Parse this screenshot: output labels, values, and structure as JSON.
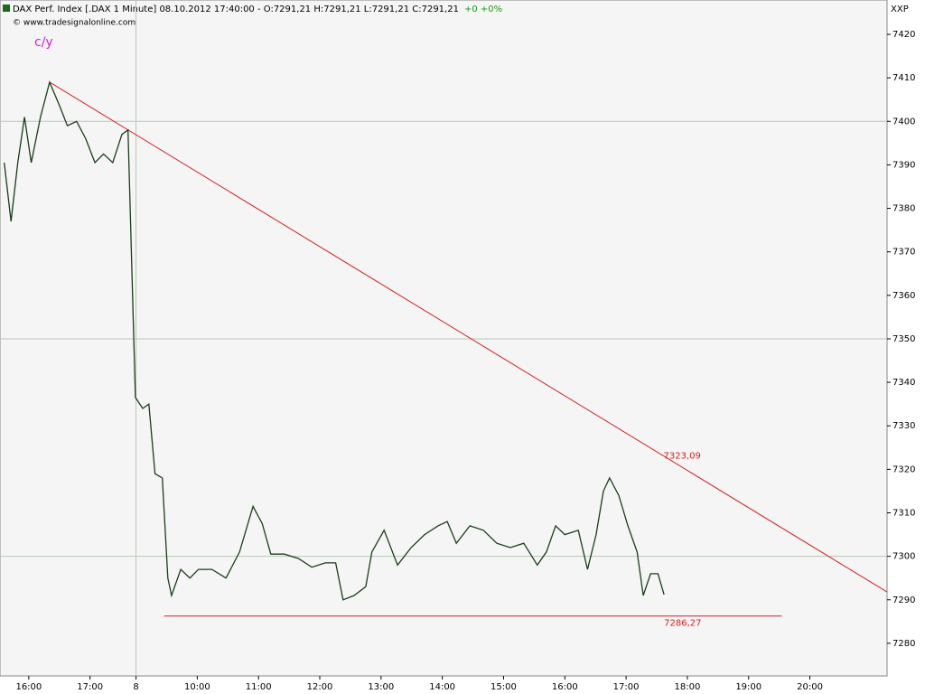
{
  "chart_data": {
    "type": "line",
    "title": "DAX Perf. Index [.DAX  1 Minute] 08.10.2012 17:40:00 - O:7291,21 H:7291,21 L:7291,21 C:7291,21",
    "change": "+0 +0%",
    "copyright": "© www.tradesignalonline.com",
    "tag": "c/y",
    "axis_label": "XXP",
    "x": [
      15.6,
      15.71,
      15.82,
      15.93,
      16.04,
      16.19,
      16.34,
      16.49,
      16.63,
      16.78,
      16.93,
      17.08,
      17.22,
      17.37,
      17.52,
      17.62,
      17.74,
      17.86,
      17.96,
      18.06,
      18.18,
      18.27,
      18.33,
      18.48,
      18.63,
      18.77,
      18.99,
      19.22,
      19.44,
      19.66,
      19.81,
      19.95,
      20.17,
      20.4,
      20.62,
      20.84,
      21.01,
      21.13,
      21.31,
      21.5,
      21.6,
      21.8,
      22.02,
      22.24,
      22.46,
      22.68,
      22.83,
      22.98,
      23.2,
      23.42,
      23.64,
      23.86,
      24.08,
      24.3,
      24.45,
      24.6,
      24.75,
      24.97,
      25.12,
      25.26,
      25.38,
      25.48,
      25.63,
      25.78,
      25.93,
      26.03,
      26.15,
      26.27,
      26.37
    ],
    "series": [
      {
        "name": "DAX",
        "color": "#1a3d1a",
        "values": [
          7390.5,
          7377,
          7390.5,
          7401,
          7390.5,
          7401,
          7409,
          7404,
          7399,
          7400,
          7396,
          7390.5,
          7392.5,
          7390.5,
          7397,
          7398,
          7336.5,
          7334,
          7335,
          7319,
          7318,
          7295,
          7291,
          7297,
          7295,
          7297,
          7297,
          7295,
          7301,
          7311.5,
          7307.5,
          7300.5,
          7300.5,
          7299.5,
          7297.5,
          7298.5,
          7298.5,
          7290,
          7291,
          7293,
          7301,
          7306,
          7298,
          7302,
          7305,
          7307,
          7308,
          7303,
          7307,
          7306,
          7303,
          7302,
          7303,
          7298,
          7301,
          7307,
          7305,
          7306,
          7297,
          7305,
          7315,
          7318,
          7314,
          7307,
          7301,
          7291,
          7296,
          7296,
          7291.21
        ]
      }
    ],
    "xlim": [
      15.53,
      30.01
    ],
    "ylim": [
      7272.5,
      7427.9
    ],
    "yticks": [
      7280,
      7290,
      7300,
      7310,
      7320,
      7330,
      7340,
      7350,
      7360,
      7370,
      7380,
      7390,
      7400,
      7410,
      7420
    ],
    "ygrid": [
      7300,
      7350,
      7400
    ],
    "xgrid": [
      17.75
    ],
    "xticks": [
      {
        "value": 16,
        "label": "16:00"
      },
      {
        "value": 17,
        "label": "17:00"
      },
      {
        "value": 17.75,
        "label": "8"
      },
      {
        "value": 18.75,
        "label": "10:00"
      },
      {
        "value": 19.75,
        "label": "11:00"
      },
      {
        "value": 20.75,
        "label": "12:00"
      },
      {
        "value": 21.75,
        "label": "13:00"
      },
      {
        "value": 22.75,
        "label": "14:00"
      },
      {
        "value": 23.75,
        "label": "15:00"
      },
      {
        "value": 24.75,
        "label": "16:00"
      },
      {
        "value": 25.75,
        "label": "17:00"
      },
      {
        "value": 26.75,
        "label": "18:00"
      },
      {
        "value": 27.75,
        "label": "19:00"
      },
      {
        "value": 28.75,
        "label": "20:00"
      }
    ],
    "trendlines": [
      {
        "x": [
          16.34,
          30.01
        ],
        "y": [
          7409,
          7291.8
        ],
        "color": "#d42020",
        "label": {
          "value": 7323.09,
          "label": "7323,09"
        }
      },
      {
        "x": [
          18.21,
          28.29
        ],
        "y": [
          7286.27,
          7286.27
        ],
        "color": "#d42020",
        "label": {
          "value": 7286.27,
          "label": "7286,27"
        }
      }
    ]
  }
}
